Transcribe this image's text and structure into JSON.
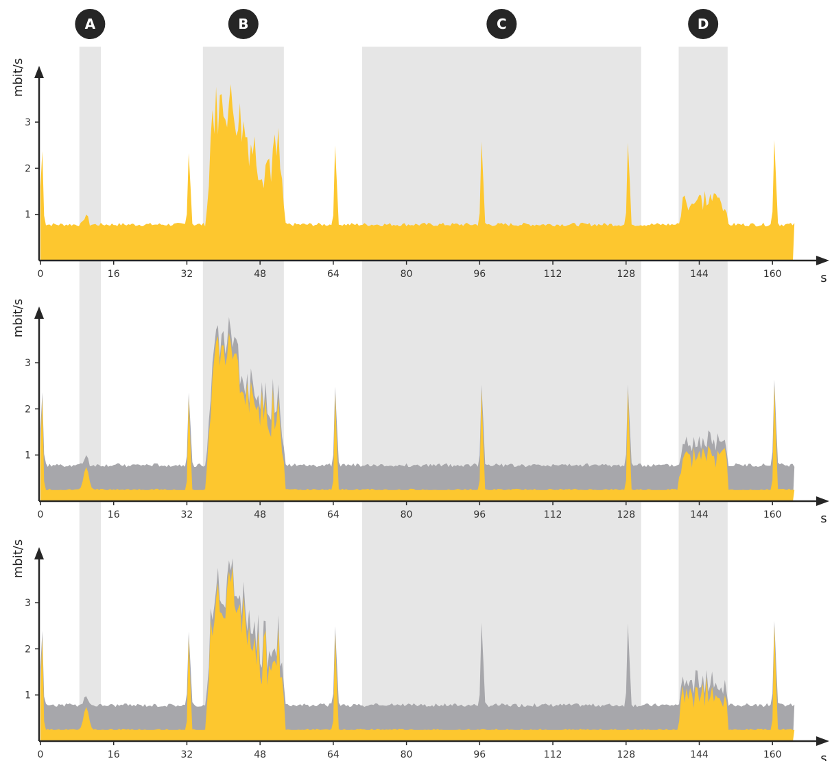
{
  "colors": {
    "accent": "#FDC72F",
    "gray_area": "#A7A7AB",
    "highlight": "#E6E6E6",
    "axis": "#262626",
    "badge": "#262626"
  },
  "chart_data": [
    {
      "type": "area",
      "xlabel": "s",
      "ylabel": "mbit/s",
      "xlim": [
        0,
        166
      ],
      "ylim": [
        0,
        3.6
      ],
      "xticks": [
        0,
        16,
        32,
        48,
        64,
        80,
        96,
        112,
        128,
        144,
        160
      ],
      "yticks": [
        1,
        2,
        3
      ],
      "highlights": [
        {
          "label": "A",
          "x": [
            8.5,
            13.2
          ]
        },
        {
          "label": "B",
          "x": [
            35.5,
            53.2
          ]
        },
        {
          "label": "C",
          "x": [
            70.3,
            131.3
          ]
        },
        {
          "label": "D",
          "x": [
            139.5,
            150.2
          ]
        }
      ],
      "series": [
        {
          "color": "#FDC72F",
          "spikes": [
            [
              0.3,
              2.5
            ],
            [
              32.5,
              2.5
            ],
            [
              64.5,
              2.6
            ],
            [
              96.5,
              2.7
            ],
            [
              128.5,
              2.7
            ],
            [
              160.5,
              2.8
            ]
          ]
        }
      ]
    },
    {
      "type": "area",
      "xlabel": "s",
      "ylabel": "mbit/s",
      "xlim": [
        0,
        166
      ],
      "ylim": [
        0,
        3.6
      ],
      "xticks": [
        0,
        16,
        32,
        48,
        64,
        80,
        96,
        112,
        128,
        144,
        160
      ],
      "yticks": [
        1,
        2,
        3
      ],
      "series": [
        {
          "color": "#A7A7AB"
        },
        {
          "color": "#FDC72F"
        }
      ]
    },
    {
      "type": "area",
      "xlabel": "s",
      "ylabel": "mbit/s",
      "xlim": [
        0,
        166
      ],
      "ylim": [
        0,
        3.6
      ],
      "xticks": [
        0,
        16,
        32,
        48,
        64,
        80,
        96,
        112,
        128,
        144,
        160
      ],
      "yticks": [
        1,
        2,
        3
      ],
      "series": [
        {
          "color": "#A7A7AB"
        },
        {
          "color": "#FDC72F"
        }
      ]
    }
  ]
}
